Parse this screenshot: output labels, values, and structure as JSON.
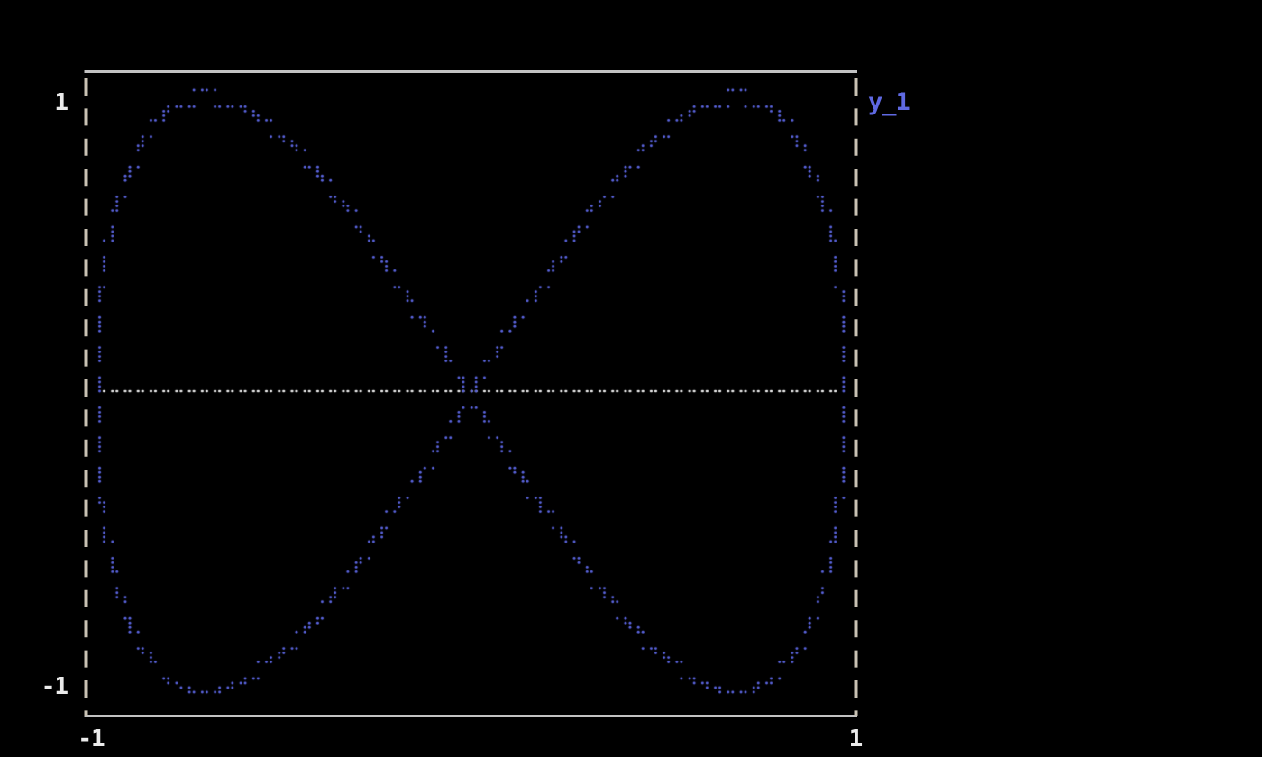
{
  "window": {
    "background": "#000000"
  },
  "colors": {
    "background": "#000000",
    "frame_solid": "#c2c2c2",
    "frame_dash": "#c9c2b4",
    "tick_text": "#ebebeb",
    "series_blue": "#5b65e0",
    "zero_line_white": "#f0f0f0"
  },
  "labels": {
    "y_max": "1",
    "y_min": "-1",
    "x_min": "-1",
    "x_max": "1"
  },
  "legend": {
    "label": "y_1",
    "color": "#5f69e2"
  },
  "chart_data": {
    "type": "scatter",
    "style": "braille-dot-terminal-plot",
    "title": "",
    "xlabel": "",
    "ylabel": "",
    "xlim": [
      -1,
      1
    ],
    "ylim": [
      -1,
      1
    ],
    "x_tick_labels": [
      "-1",
      "1"
    ],
    "y_tick_labels": [
      "1",
      "-1"
    ],
    "grid": false,
    "legend": {
      "entries": [
        {
          "label": "y_1",
          "color": "#5f69e2"
        }
      ],
      "position": "outside-top-right"
    },
    "series": [
      {
        "name": "zero-axis-line",
        "type": "hline",
        "y": 0,
        "x_range": [
          -0.985,
          0.985
        ],
        "color": "#f0f0f0",
        "marker": "dot"
      },
      {
        "name": "y_1",
        "type": "parametric",
        "x": "cos(t)",
        "y": "sin(2t)",
        "t_range": [
          0,
          6.2831853
        ],
        "samples": 6000,
        "color": "#5b65e0",
        "marker": "dot",
        "description": "1:2 Lissajous bowtie curve crossing at origin, lobes peaking at x=±0.707, touching x=±1 at y=0"
      }
    ]
  }
}
